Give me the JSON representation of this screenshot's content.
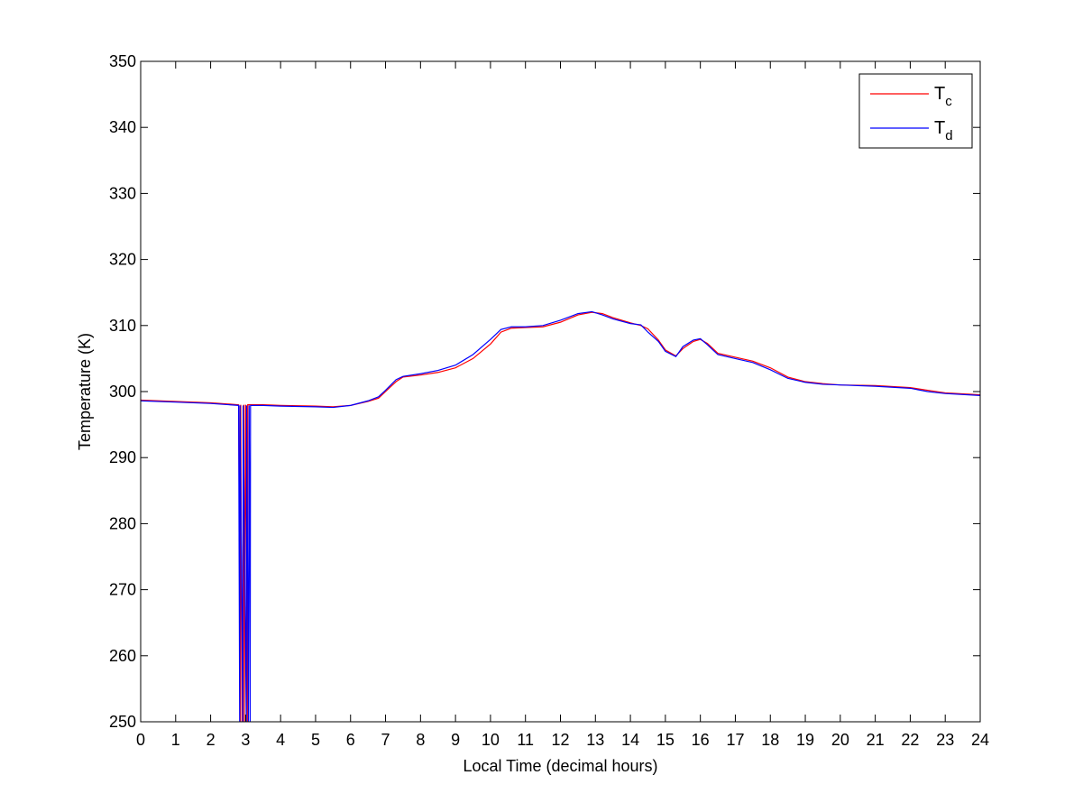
{
  "chart_data": {
    "type": "line",
    "xlabel": "Local Time (decimal hours)",
    "ylabel": "Temperature (K)",
    "xlim": [
      0,
      24
    ],
    "ylim": [
      250,
      350
    ],
    "xticks": [
      0,
      1,
      2,
      3,
      4,
      5,
      6,
      7,
      8,
      9,
      10,
      11,
      12,
      13,
      14,
      15,
      16,
      17,
      18,
      19,
      20,
      21,
      22,
      23,
      24
    ],
    "yticks": [
      250,
      260,
      270,
      280,
      290,
      300,
      310,
      320,
      330,
      340,
      350
    ],
    "grid": false,
    "legend_position": "top-right",
    "colors": {
      "Tc": "#ff0000",
      "Td": "#0000ff"
    },
    "series": [
      {
        "name": "T",
        "subscript": "c",
        "color": "#ff0000",
        "x": [
          0,
          1,
          2,
          2.8,
          2.85,
          2.86,
          2.9,
          2.95,
          2.96,
          3.0,
          3.05,
          3.06,
          3.1,
          3.5,
          4,
          5,
          5.5,
          6,
          6.5,
          6.8,
          7,
          7.3,
          7.5,
          8,
          8.5,
          9,
          9.5,
          10,
          10.3,
          10.6,
          11,
          11.5,
          12,
          12.5,
          12.9,
          13.2,
          13.5,
          14,
          14.3,
          14.5,
          14.8,
          15,
          15.3,
          15.5,
          15.8,
          16,
          16.2,
          16.5,
          17,
          17.5,
          18,
          18.5,
          19,
          19.5,
          20,
          21,
          22,
          22.5,
          23,
          24
        ],
        "y": [
          298.7,
          298.5,
          298.3,
          298.0,
          250,
          298.0,
          250,
          298.0,
          250,
          298.0,
          250,
          298.0,
          298.0,
          298.0,
          297.9,
          297.8,
          297.7,
          297.9,
          298.5,
          299.0,
          300.0,
          301.5,
          302.2,
          302.5,
          302.9,
          303.6,
          305.0,
          307.2,
          309.0,
          309.6,
          309.7,
          309.8,
          310.5,
          311.6,
          312.0,
          311.8,
          311.2,
          310.4,
          310.0,
          309.5,
          307.8,
          306.3,
          305.4,
          306.5,
          307.6,
          307.9,
          307.3,
          305.8,
          305.2,
          304.6,
          303.6,
          302.2,
          301.5,
          301.2,
          301.0,
          300.9,
          300.6,
          300.2,
          299.8,
          299.5
        ]
      },
      {
        "name": "T",
        "subscript": "d",
        "color": "#0000ff",
        "x": [
          0,
          1,
          2,
          2.8,
          2.83,
          2.84,
          2.92,
          2.93,
          3.02,
          3.03,
          3.08,
          3.1,
          3.12,
          3.13,
          3.14,
          3.5,
          4,
          5,
          5.5,
          6,
          6.5,
          6.8,
          7,
          7.3,
          7.5,
          8,
          8.5,
          9,
          9.5,
          10,
          10.3,
          10.6,
          11,
          11.5,
          12,
          12.5,
          12.9,
          13.2,
          13.5,
          14,
          14.3,
          14.5,
          14.8,
          15,
          15.3,
          15.5,
          15.8,
          16,
          16.2,
          16.5,
          17,
          17.5,
          18,
          18.5,
          19,
          19.5,
          20,
          21,
          22,
          22.5,
          23,
          24
        ],
        "y": [
          298.6,
          298.4,
          298.2,
          297.9,
          250,
          297.9,
          250,
          297.9,
          250,
          297.9,
          250,
          297.9,
          274,
          250,
          297.9,
          297.9,
          297.8,
          297.7,
          297.6,
          297.9,
          298.6,
          299.2,
          300.2,
          301.8,
          302.3,
          302.7,
          303.2,
          304.0,
          305.6,
          307.9,
          309.4,
          309.8,
          309.8,
          310.0,
          310.8,
          311.8,
          312.1,
          311.6,
          311.0,
          310.3,
          310.1,
          309.0,
          307.6,
          306.1,
          305.3,
          306.8,
          307.8,
          308.0,
          307.1,
          305.6,
          305.0,
          304.4,
          303.3,
          302.0,
          301.4,
          301.1,
          301.0,
          300.8,
          300.5,
          300.0,
          299.7,
          299.4
        ]
      }
    ]
  }
}
